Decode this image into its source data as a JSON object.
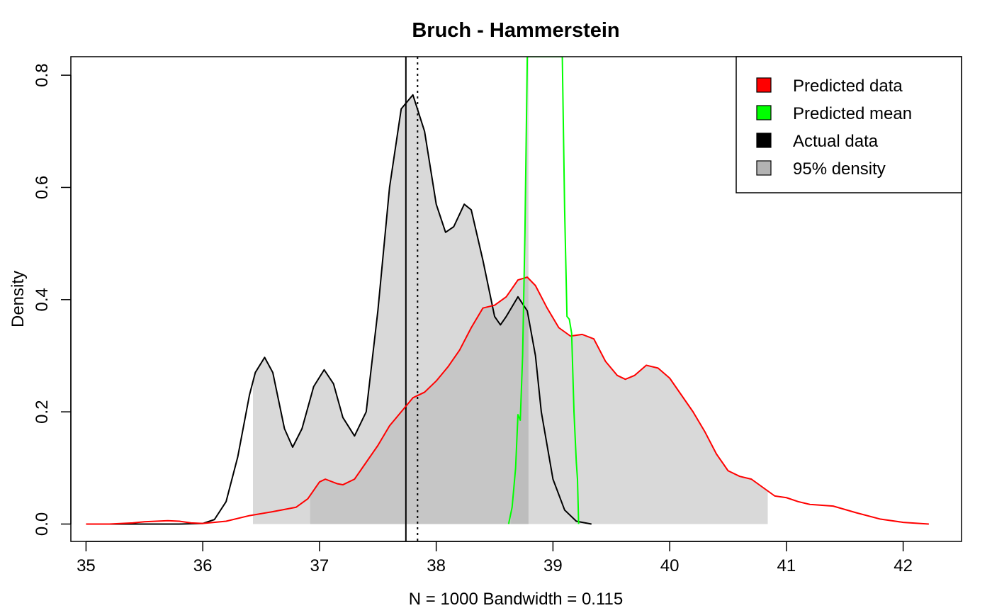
{
  "chart_data": {
    "type": "area",
    "title": "Bruch - Hammerstein",
    "xlabel": "N = 1000   Bandwidth = 0.115",
    "ylabel": "Density",
    "xlim": [
      34.87,
      42.5
    ],
    "ylim": [
      -0.031,
      0.833
    ],
    "x_ticks": [
      35,
      36,
      37,
      38,
      39,
      40,
      41,
      42
    ],
    "y_ticks": [
      0.0,
      0.2,
      0.4,
      0.6,
      0.8
    ],
    "y_tick_labels": [
      "0.0",
      "0.2",
      "0.4",
      "0.6",
      "0.8"
    ],
    "grid": false,
    "legend_position": "top-right",
    "legend": [
      {
        "label": "Predicted data",
        "color": "#ff0000"
      },
      {
        "label": "Predicted mean",
        "color": "#00ff00"
      },
      {
        "label": "Actual data",
        "color": "#000000"
      },
      {
        "label": "95% density",
        "color": "#b3b3b3"
      }
    ],
    "vertical_lines": [
      {
        "x": 37.74,
        "style": "solid",
        "color": "#000000"
      },
      {
        "x": 37.84,
        "style": "dotted",
        "color": "#000000"
      }
    ],
    "series": [
      {
        "name": "Actual data",
        "color": "#000000",
        "interval_95": [
          36.43,
          38.79
        ],
        "points": [
          [
            35.15,
            0.0
          ],
          [
            35.8,
            0.0
          ],
          [
            36.0,
            0.001
          ],
          [
            36.1,
            0.008
          ],
          [
            36.2,
            0.04
          ],
          [
            36.3,
            0.12
          ],
          [
            36.4,
            0.23
          ],
          [
            36.45,
            0.27
          ],
          [
            36.53,
            0.297
          ],
          [
            36.6,
            0.27
          ],
          [
            36.7,
            0.17
          ],
          [
            36.77,
            0.137
          ],
          [
            36.85,
            0.17
          ],
          [
            36.95,
            0.245
          ],
          [
            37.04,
            0.275
          ],
          [
            37.12,
            0.25
          ],
          [
            37.2,
            0.19
          ],
          [
            37.3,
            0.157
          ],
          [
            37.4,
            0.2
          ],
          [
            37.5,
            0.38
          ],
          [
            37.6,
            0.6
          ],
          [
            37.7,
            0.74
          ],
          [
            37.8,
            0.765
          ],
          [
            37.9,
            0.7
          ],
          [
            38.0,
            0.57
          ],
          [
            38.08,
            0.52
          ],
          [
            38.15,
            0.53
          ],
          [
            38.24,
            0.57
          ],
          [
            38.3,
            0.56
          ],
          [
            38.4,
            0.47
          ],
          [
            38.5,
            0.37
          ],
          [
            38.55,
            0.355
          ],
          [
            38.6,
            0.37
          ],
          [
            38.7,
            0.405
          ],
          [
            38.78,
            0.38
          ],
          [
            38.85,
            0.3
          ],
          [
            38.9,
            0.2
          ],
          [
            39.0,
            0.08
          ],
          [
            39.1,
            0.025
          ],
          [
            39.2,
            0.005
          ],
          [
            39.33,
            0.0
          ]
        ]
      },
      {
        "name": "Predicted data",
        "color": "#ff0000",
        "interval_95": [
          36.92,
          40.84
        ],
        "points": [
          [
            35.0,
            0.0
          ],
          [
            35.2,
            0.0
          ],
          [
            35.4,
            0.002
          ],
          [
            35.5,
            0.004
          ],
          [
            35.7,
            0.006
          ],
          [
            35.8,
            0.005
          ],
          [
            35.9,
            0.002
          ],
          [
            36.0,
            0.001
          ],
          [
            36.2,
            0.005
          ],
          [
            36.4,
            0.015
          ],
          [
            36.6,
            0.022
          ],
          [
            36.8,
            0.03
          ],
          [
            36.9,
            0.045
          ],
          [
            37.0,
            0.075
          ],
          [
            37.05,
            0.08
          ],
          [
            37.15,
            0.072
          ],
          [
            37.2,
            0.07
          ],
          [
            37.3,
            0.08
          ],
          [
            37.4,
            0.11
          ],
          [
            37.5,
            0.14
          ],
          [
            37.6,
            0.175
          ],
          [
            37.7,
            0.2
          ],
          [
            37.8,
            0.225
          ],
          [
            37.9,
            0.235
          ],
          [
            38.0,
            0.255
          ],
          [
            38.1,
            0.28
          ],
          [
            38.2,
            0.31
          ],
          [
            38.3,
            0.35
          ],
          [
            38.4,
            0.385
          ],
          [
            38.5,
            0.39
          ],
          [
            38.6,
            0.405
          ],
          [
            38.7,
            0.435
          ],
          [
            38.78,
            0.44
          ],
          [
            38.85,
            0.425
          ],
          [
            38.95,
            0.385
          ],
          [
            39.05,
            0.35
          ],
          [
            39.15,
            0.335
          ],
          [
            39.25,
            0.338
          ],
          [
            39.35,
            0.33
          ],
          [
            39.45,
            0.29
          ],
          [
            39.55,
            0.265
          ],
          [
            39.62,
            0.258
          ],
          [
            39.7,
            0.265
          ],
          [
            39.8,
            0.283
          ],
          [
            39.9,
            0.278
          ],
          [
            40.0,
            0.26
          ],
          [
            40.1,
            0.23
          ],
          [
            40.2,
            0.2
          ],
          [
            40.3,
            0.165
          ],
          [
            40.4,
            0.125
          ],
          [
            40.5,
            0.095
          ],
          [
            40.6,
            0.085
          ],
          [
            40.7,
            0.08
          ],
          [
            40.8,
            0.065
          ],
          [
            40.9,
            0.05
          ],
          [
            41.0,
            0.047
          ],
          [
            41.1,
            0.04
          ],
          [
            41.2,
            0.035
          ],
          [
            41.4,
            0.032
          ],
          [
            41.6,
            0.02
          ],
          [
            41.8,
            0.009
          ],
          [
            42.0,
            0.003
          ],
          [
            42.22,
            0.0
          ]
        ]
      },
      {
        "name": "Predicted mean",
        "color": "#00ff00",
        "interval_95": [
          38.64,
          38.79
        ],
        "points": [
          [
            38.62,
            0.0
          ],
          [
            38.65,
            0.03
          ],
          [
            38.68,
            0.1
          ],
          [
            38.7,
            0.195
          ],
          [
            38.72,
            0.185
          ],
          [
            38.74,
            0.3
          ],
          [
            38.76,
            0.52
          ],
          [
            38.78,
            0.833
          ],
          [
            39.08,
            0.833
          ],
          [
            39.1,
            0.56
          ],
          [
            39.12,
            0.37
          ],
          [
            39.14,
            0.365
          ],
          [
            39.16,
            0.34
          ],
          [
            39.18,
            0.2
          ],
          [
            39.2,
            0.11
          ],
          [
            39.21,
            0.08
          ],
          [
            39.22,
            0.0
          ]
        ]
      }
    ]
  }
}
